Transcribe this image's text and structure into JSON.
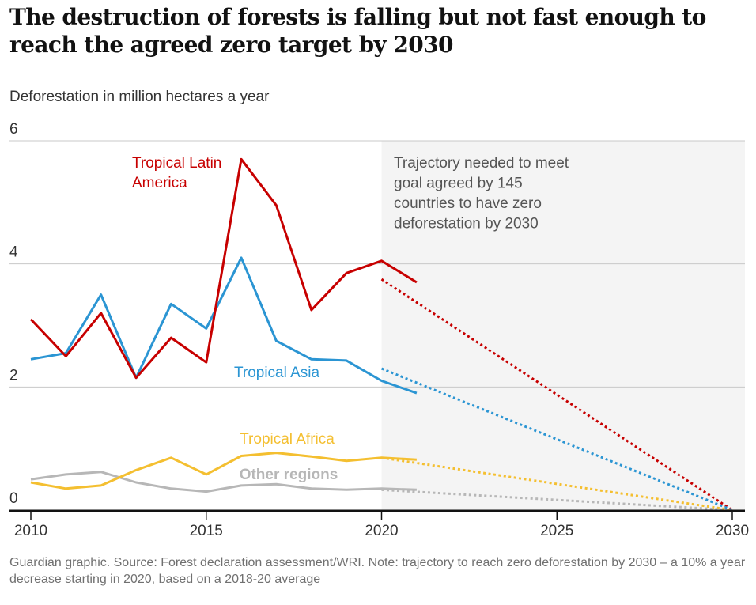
{
  "title": "The destruction of forests is falling but not fast enough to reach the agreed zero target by 2030",
  "subtitle": "Deforestation in million hectares a year",
  "footer": "Guardian graphic. Source: Forest declaration assessment/WRI. Note: trajectory to reach zero deforestation by 2030 – a 10% a year decrease starting in 2020, based on a 2018-20 average",
  "colors": {
    "latin_america": "#c70000",
    "asia": "#2b95d3",
    "africa": "#f4bf30",
    "other": "#b7b7b7",
    "shade": "#f4f4f4",
    "grid": "#c8c8c8",
    "axis": "#121212"
  },
  "chart_data": {
    "type": "line",
    "xlabel": "",
    "ylabel": "Deforestation in million hectares a year",
    "xlim": [
      2009.4,
      2030.3
    ],
    "ylim": [
      0,
      6
    ],
    "xticks": [
      2010,
      2015,
      2020,
      2025,
      2030
    ],
    "xtick_labels": [
      "2010",
      "2015",
      "2020",
      "2025",
      "2030"
    ],
    "yticks": [
      0,
      2,
      4,
      6
    ],
    "ytick_labels": [
      "0",
      "2",
      "4",
      "6"
    ],
    "shaded_region": {
      "from": 2020,
      "to": 2030.3
    },
    "annotation": "Trajectory needed to meet goal agreed by 145 countries to have zero deforestation by 2030",
    "series": [
      {
        "key": "latin_america",
        "name": "Tropical Latin America",
        "label_lines": [
          "Tropical Latin",
          "America"
        ],
        "x": [
          2010,
          2011,
          2012,
          2013,
          2014,
          2015,
          2016,
          2017,
          2018,
          2019,
          2020,
          2021
        ],
        "values": [
          3.1,
          2.5,
          3.2,
          2.15,
          2.8,
          2.4,
          5.7,
          4.95,
          3.25,
          3.85,
          4.05,
          3.7
        ],
        "trajectory": {
          "x": [
            2020,
            2030
          ],
          "values": [
            3.75,
            0
          ]
        }
      },
      {
        "key": "asia",
        "name": "Tropical Asia",
        "label_lines": [
          "Tropical Asia"
        ],
        "x": [
          2010,
          2011,
          2012,
          2013,
          2014,
          2015,
          2016,
          2017,
          2018,
          2019,
          2020,
          2021
        ],
        "values": [
          2.45,
          2.55,
          3.5,
          2.15,
          3.35,
          2.95,
          4.1,
          2.75,
          2.45,
          2.43,
          2.1,
          1.9
        ],
        "trajectory": {
          "x": [
            2020,
            2030
          ],
          "values": [
            2.3,
            0
          ]
        }
      },
      {
        "key": "africa",
        "name": "Tropical Africa",
        "label_lines": [
          "Tropical Africa"
        ],
        "x": [
          2010,
          2011,
          2012,
          2013,
          2014,
          2015,
          2016,
          2017,
          2018,
          2019,
          2020,
          2021
        ],
        "values": [
          0.45,
          0.35,
          0.4,
          0.65,
          0.85,
          0.58,
          0.88,
          0.93,
          0.87,
          0.8,
          0.85,
          0.82
        ],
        "trajectory": {
          "x": [
            2020,
            2030
          ],
          "values": [
            0.85,
            0
          ]
        }
      },
      {
        "key": "other",
        "name": "Other regions",
        "label_lines": [
          "Other regions"
        ],
        "x": [
          2010,
          2011,
          2012,
          2013,
          2014,
          2015,
          2016,
          2017,
          2018,
          2019,
          2020,
          2021
        ],
        "values": [
          0.5,
          0.58,
          0.62,
          0.45,
          0.35,
          0.3,
          0.4,
          0.42,
          0.35,
          0.33,
          0.35,
          0.33
        ],
        "trajectory": {
          "x": [
            2020,
            2030
          ],
          "values": [
            0.33,
            0
          ]
        }
      }
    ]
  }
}
